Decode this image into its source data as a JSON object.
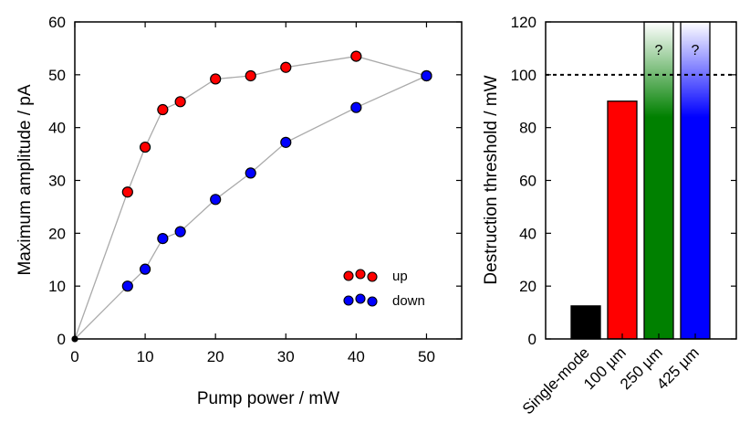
{
  "chart_data": [
    {
      "type": "line",
      "xlabel": "Pump power / mW",
      "ylabel": "Maximum amplitude / pA",
      "xlim": [
        0,
        55
      ],
      "ylim": [
        0,
        60
      ],
      "xticks": [
        0,
        10,
        20,
        30,
        40,
        50
      ],
      "yticks": [
        0,
        10,
        20,
        30,
        40,
        50,
        60
      ],
      "series": [
        {
          "name": "up",
          "color": "#ff0000",
          "x": [
            0,
            7.5,
            10,
            12.5,
            15,
            20,
            25,
            30,
            40,
            50
          ],
          "y": [
            0,
            27.8,
            36.3,
            43.4,
            44.9,
            49.2,
            49.8,
            51.4,
            53.5,
            49.8
          ]
        },
        {
          "name": "down",
          "color": "#0000ff",
          "x": [
            0,
            7.5,
            10,
            12.5,
            15,
            20,
            25,
            30,
            40,
            50
          ],
          "y": [
            0,
            10.0,
            13.2,
            19.0,
            20.3,
            26.4,
            31.4,
            37.2,
            43.8,
            49.8
          ]
        }
      ],
      "legend": "lower-right",
      "line_color": "#aaaaaa"
    },
    {
      "type": "bar",
      "ylabel": "Destruction threshold / mW",
      "categories": [
        "Single-mode",
        "100 µm",
        "250 µm",
        "425 µm"
      ],
      "values": [
        12.5,
        90,
        120,
        120
      ],
      "colors": [
        "#000000",
        "#ff0000",
        "#008000",
        "#0000ff"
      ],
      "open_ended": [
        false,
        false,
        true,
        true
      ],
      "bar_annotation": "?",
      "ylim": [
        0,
        120
      ],
      "yticks": [
        0,
        20,
        40,
        60,
        80,
        100,
        120
      ],
      "reference_line": 100
    }
  ]
}
